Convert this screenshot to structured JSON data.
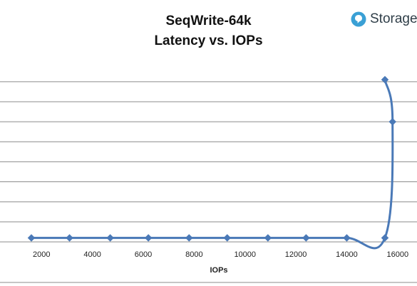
{
  "chart_data": {
    "type": "line",
    "title": "SeqWrite-64k",
    "subtitle": "Latency vs. IOPs",
    "xlabel": "IOPs",
    "ylabel": "",
    "xlim": [
      1000,
      16500
    ],
    "ylim": [
      0,
      8
    ],
    "x_ticks": [
      "2000",
      "4000",
      "6000",
      "8000",
      "10000",
      "12000",
      "14000",
      "16000"
    ],
    "show_y_tick_labels": false,
    "grid": true,
    "marker": "diamond",
    "line_color": "#4a79b7",
    "series": [
      {
        "x": [
          1600,
          3100,
          4700,
          6200,
          7800,
          9300,
          10900,
          12400,
          14000,
          15500,
          15800,
          15500
        ],
        "y": [
          0.2,
          0.2,
          0.2,
          0.2,
          0.2,
          0.2,
          0.2,
          0.2,
          0.2,
          0.2,
          6.0,
          8.1
        ]
      }
    ]
  },
  "brand": {
    "name": "Storage",
    "icon": "storage-review-logo-icon",
    "color": "#3aa0d5"
  }
}
